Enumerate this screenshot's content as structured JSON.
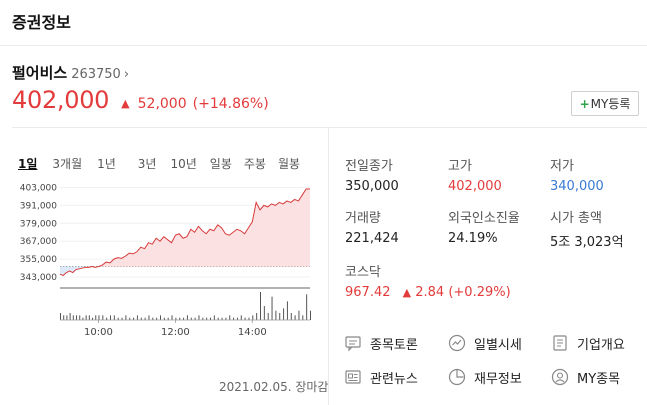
{
  "header": {
    "title": "증권정보"
  },
  "stock": {
    "name": "펄어비스",
    "code": "263750",
    "chevron": "›",
    "price": "402,000",
    "arrow": "▲",
    "change": "52,000",
    "change_pct": "(+14.86%)"
  },
  "my_button": {
    "plus": "+",
    "label": "MY등록"
  },
  "period_tabs": [
    "1일",
    "3개월",
    "1년",
    "3년",
    "10년",
    "일봉",
    "주봉",
    "월봉"
  ],
  "date_status": "2021.02.05. 장마감",
  "stats": {
    "prev_close": {
      "label": "전일종가",
      "value": "350,000"
    },
    "high": {
      "label": "고가",
      "value": "402,000"
    },
    "low": {
      "label": "저가",
      "value": "340,000"
    },
    "volume": {
      "label": "거래량",
      "value": "221,424"
    },
    "foreign": {
      "label": "외국인소진율",
      "value": "24.19%"
    },
    "mcap": {
      "label": "시가 총액",
      "value": "5조 3,023억"
    },
    "index": {
      "label": "코스닥",
      "value": "967.42",
      "arrow": "▲",
      "change": "2.84",
      "pct": "(+0.29%)"
    }
  },
  "links": {
    "discussion": "종목토론",
    "daily": "일별시세",
    "company": "기업개요",
    "news": "관련뉴스",
    "finance": "재무정보",
    "mystock": "MY종목"
  },
  "colors": {
    "up": "#e33b3b",
    "down": "#3a7bd5",
    "accent": "#2fa34a"
  },
  "chart_data": {
    "type": "line",
    "ylim": [
      341000,
      404000
    ],
    "y_ticks": [
      "403,000",
      "391,000",
      "379,000",
      "367,000",
      "355,000",
      "343,000"
    ],
    "y_tick_values": [
      403000,
      391000,
      379000,
      367000,
      355000,
      343000
    ],
    "x_ticks": [
      "10:00",
      "12:00",
      "14:00"
    ],
    "x_tick_minutes": [
      600,
      720,
      840
    ],
    "xlim_minutes": [
      540,
      930
    ],
    "reference_value": 350000,
    "series": [
      {
        "x": [
          540,
          545,
          550,
          555,
          560,
          565,
          570,
          575,
          580,
          585,
          590,
          595,
          600,
          606,
          612,
          618,
          624,
          630,
          636,
          642,
          648,
          654,
          660,
          666,
          672,
          678,
          684,
          690,
          696,
          702,
          708,
          714,
          720,
          726,
          732,
          738,
          744,
          750,
          756,
          762,
          768,
          774,
          780,
          786,
          792,
          798,
          804,
          810,
          816,
          822,
          828,
          834,
          840,
          846,
          852,
          858,
          864,
          870,
          876,
          882,
          888,
          894,
          900,
          906,
          912,
          918,
          924,
          930
        ],
        "values": [
          345000,
          344000,
          346000,
          347000,
          346000,
          348000,
          348500,
          349000,
          349500,
          349500,
          350000,
          349500,
          350000,
          351000,
          353000,
          352500,
          355000,
          356000,
          355500,
          357000,
          359000,
          358500,
          360000,
          363000,
          362000,
          366000,
          365000,
          369000,
          367000,
          370000,
          368000,
          366000,
          371000,
          372000,
          369000,
          370000,
          375000,
          373000,
          377000,
          374000,
          372000,
          375000,
          374000,
          378000,
          376000,
          372000,
          371000,
          373000,
          375000,
          374000,
          372000,
          376000,
          380000,
          393000,
          388000,
          391000,
          390000,
          392000,
          391000,
          393000,
          392000,
          394000,
          393000,
          395000,
          394000,
          398000,
          402000,
          402000
        ]
      }
    ],
    "volume_bars": [
      3,
      2,
      2,
      3,
      2,
      2,
      2,
      1,
      2,
      2,
      1,
      2,
      2,
      2,
      1,
      2,
      2,
      1,
      1,
      2,
      1,
      1,
      2,
      1,
      1,
      2,
      1,
      1,
      2,
      1,
      1,
      2,
      1,
      1,
      1,
      2,
      1,
      1,
      2,
      1,
      1,
      1,
      2,
      1,
      1,
      1,
      2,
      1,
      1,
      2,
      1,
      1,
      2,
      3,
      12,
      6,
      3,
      10,
      4,
      3,
      5,
      8,
      3,
      2,
      4,
      2,
      11,
      4
    ]
  }
}
